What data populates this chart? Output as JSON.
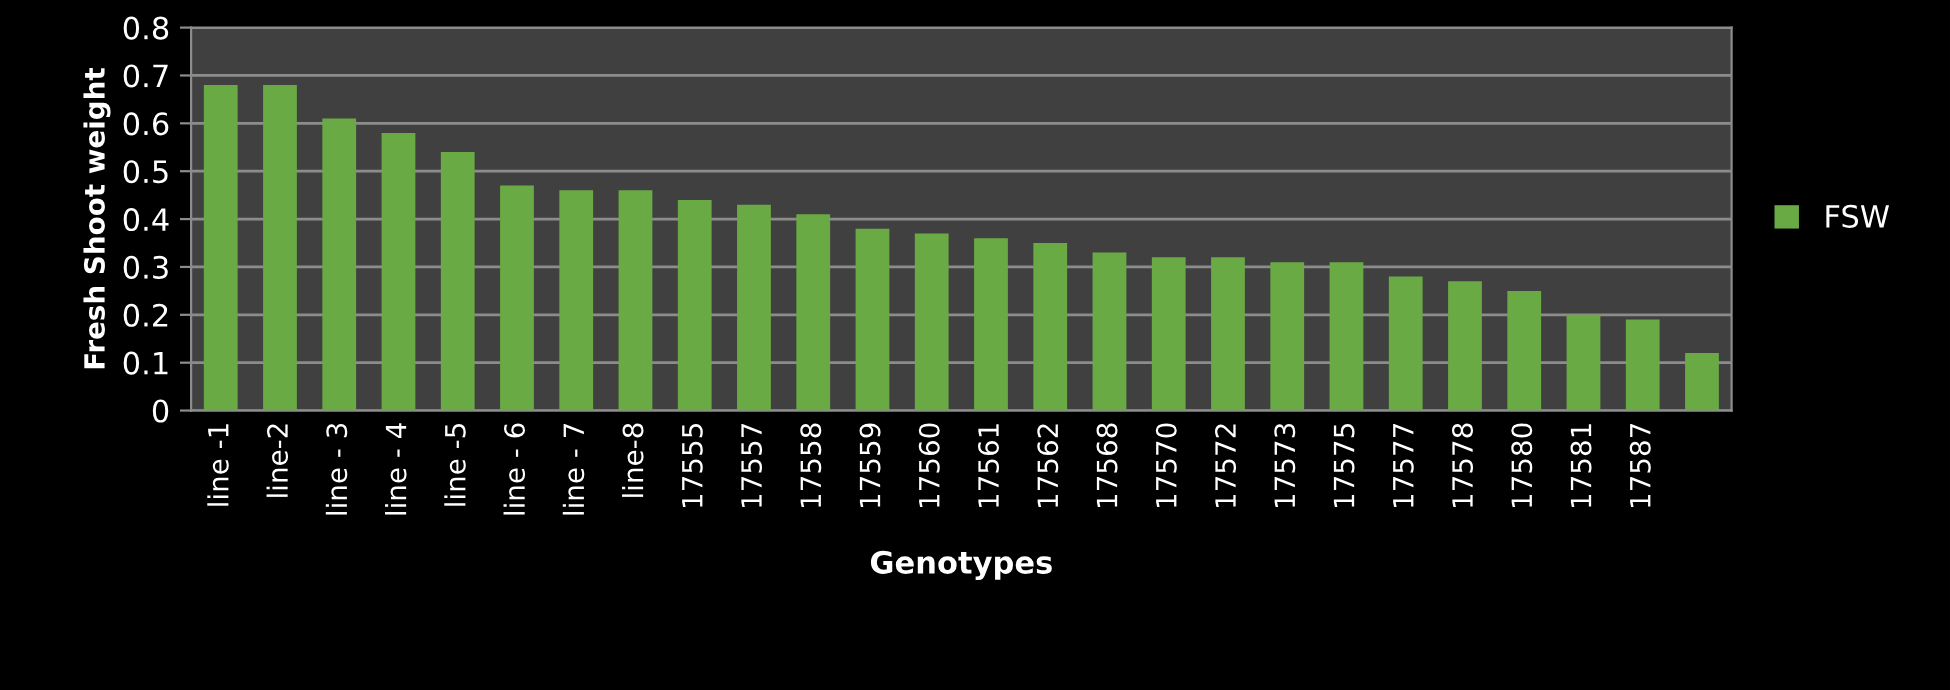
{
  "chart_data": {
    "type": "bar",
    "xlabel": "Genotypes",
    "ylabel": "Fresh Shoot weight",
    "categories": [
      "line -1",
      "line-2",
      "line - 3",
      "line - 4",
      "line -5",
      "line - 6",
      "line - 7",
      "line-8",
      "17555",
      "17557",
      "17558",
      "17559",
      "17560",
      "17561",
      "17562",
      "17568",
      "17570",
      "17572",
      "17573",
      "17575",
      "17577",
      "17578",
      "17580",
      "17581",
      "17587",
      null
    ],
    "series": [
      {
        "name": "FSW",
        "color": "#6aaa45",
        "values": [
          0.68,
          0.68,
          0.61,
          0.58,
          0.54,
          0.47,
          0.46,
          0.46,
          0.44,
          0.43,
          0.41,
          0.38,
          0.37,
          0.36,
          0.35,
          0.33,
          0.32,
          0.32,
          0.31,
          0.31,
          0.28,
          0.27,
          0.25,
          0.2,
          0.19,
          0.12
        ]
      }
    ],
    "ylim": [
      0,
      0.8
    ],
    "yticks": [
      0,
      {
        "value": 0.1,
        "label": "0.1"
      },
      {
        "value": 0.2,
        "label": "0.2"
      },
      {
        "value": 0.3,
        "label": "0.3"
      },
      {
        "value": 0.4,
        "label": "0.4"
      },
      {
        "value": 0.5,
        "label": "0.5"
      },
      {
        "value": 0.6,
        "label": "0.6"
      },
      {
        "value": 0.7,
        "label": "0.7"
      },
      {
        "value": 0.8,
        "label": "0.8"
      }
    ],
    "grid": "y",
    "legend": "right"
  }
}
